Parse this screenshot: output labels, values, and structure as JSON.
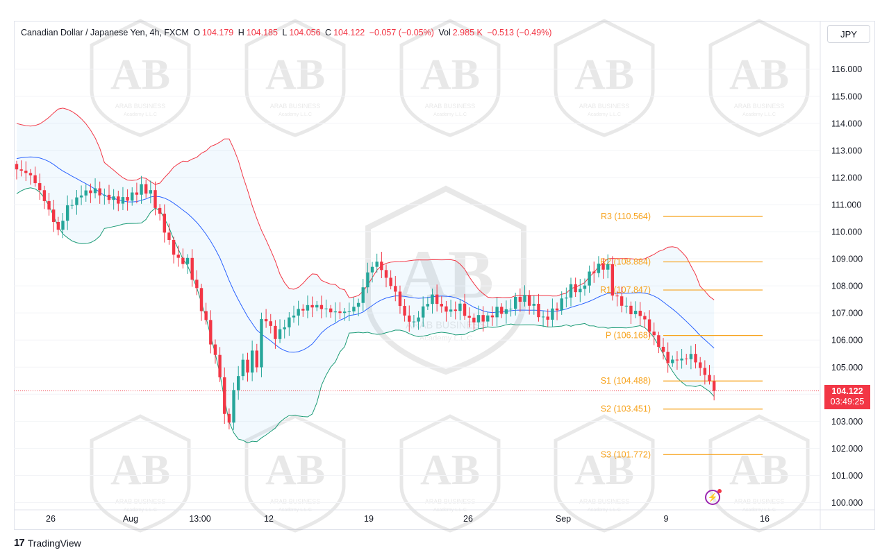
{
  "header": {
    "symbol": "Canadian Dollar / Japanese Yen, 4h, FXCM",
    "o_label": "O",
    "o_value": "104.179",
    "h_label": "H",
    "h_value": "104.185",
    "l_label": "L",
    "l_value": "104.056",
    "c_label": "C",
    "c_value": "104.122",
    "change": "−0.057 (−0.05%)",
    "vol_label": "Vol",
    "vol_value": "2.985 K",
    "vol_change": "−0.513 (−0.49%)",
    "currency": "JPY"
  },
  "price_tag": {
    "price": "104.122",
    "countdown": "03:49:25"
  },
  "footer": {
    "brand": "TradingView",
    "logo": "17"
  },
  "watermark": {
    "line1": "ARAB BUSINESS",
    "line2": "Academy L.L.C",
    "monogram": "AB"
  },
  "colors": {
    "up": "#26a69a",
    "down": "#f23645",
    "upper_band": "#f23645",
    "lower_band": "#1b9b76",
    "basis": "#2962ff",
    "pivot": "#f7a21b",
    "band_fill": "#2196f3"
  },
  "chart_data": {
    "type": "candlestick",
    "y_axis": {
      "ticks": [
        "100.000",
        "101.000",
        "102.000",
        "103.000",
        "104.000",
        "105.000",
        "106.000",
        "107.000",
        "108.000",
        "109.000",
        "110.000",
        "111.000",
        "112.000",
        "113.000",
        "114.000",
        "115.000",
        "116.000"
      ],
      "range": [
        99.6,
        116.8
      ]
    },
    "x_axis": {
      "ticks": [
        "26",
        "Aug",
        "13:00",
        "12",
        "19",
        "26",
        "Sep",
        "9",
        "16"
      ]
    },
    "pivot_levels": [
      {
        "name": "R3",
        "value": 110.564,
        "label": "R3 (110.564)"
      },
      {
        "name": "R2",
        "value": 108.884,
        "label": "R2 (108.884)"
      },
      {
        "name": "R1",
        "value": 107.847,
        "label": "R1 (107.847)"
      },
      {
        "name": "P",
        "value": 106.168,
        "label": "P (106.168)"
      },
      {
        "name": "S1",
        "value": 104.488,
        "label": "S1 (104.488)"
      },
      {
        "name": "S2",
        "value": 103.451,
        "label": "S2 (103.451)"
      },
      {
        "name": "S3",
        "value": 101.772,
        "label": "S3 (101.772)"
      }
    ],
    "last_price": 104.122,
    "close_path": [
      [
        0,
        112.3
      ],
      [
        3,
        111.8
      ],
      [
        6,
        111.0
      ],
      [
        9,
        110.2
      ],
      [
        11,
        111.2
      ],
      [
        14,
        111.5
      ],
      [
        17,
        111.3
      ],
      [
        19,
        111.0
      ],
      [
        22,
        111.1
      ],
      [
        25,
        111.6
      ],
      [
        27,
        111.9
      ],
      [
        29,
        111.5
      ],
      [
        31,
        110.4
      ],
      [
        33,
        109.3
      ],
      [
        35,
        108.7
      ],
      [
        37,
        108.9
      ],
      [
        39,
        108.0
      ],
      [
        41,
        106.9
      ],
      [
        43,
        105.5
      ],
      [
        44,
        104.8
      ],
      [
        45,
        103.1
      ],
      [
        46,
        102.9
      ],
      [
        47,
        103.8
      ],
      [
        48,
        104.5
      ],
      [
        49,
        104.9
      ],
      [
        50,
        104.7
      ],
      [
        51,
        105.4
      ],
      [
        52,
        105.1
      ],
      [
        53,
        106.8
      ],
      [
        54,
        107.0
      ],
      [
        56,
        106.4
      ],
      [
        58,
        106.7
      ],
      [
        60,
        106.9
      ],
      [
        62,
        106.9
      ],
      [
        64,
        107.0
      ],
      [
        66,
        107.1
      ],
      [
        68,
        107.2
      ],
      [
        70,
        107.3
      ],
      [
        72,
        107.3
      ],
      [
        74,
        107.4
      ],
      [
        76,
        108.3
      ],
      [
        78,
        108.6
      ],
      [
        80,
        108.1
      ],
      [
        82,
        107.8
      ],
      [
        84,
        107.1
      ],
      [
        86,
        106.9
      ],
      [
        88,
        107.3
      ],
      [
        90,
        107.5
      ],
      [
        92,
        106.9
      ],
      [
        94,
        106.8
      ],
      [
        96,
        107.2
      ],
      [
        98,
        106.9
      ],
      [
        100,
        107.1
      ],
      [
        102,
        107.0
      ],
      [
        104,
        107.1
      ],
      [
        106,
        106.8
      ],
      [
        108,
        107.2
      ],
      [
        110,
        107.4
      ],
      [
        112,
        107.3
      ],
      [
        114,
        107.0
      ],
      [
        116,
        107.3
      ],
      [
        118,
        107.5
      ],
      [
        120,
        107.8
      ],
      [
        122,
        107.5
      ],
      [
        124,
        108.2
      ],
      [
        126,
        108.7
      ],
      [
        128,
        108.9
      ],
      [
        129,
        108.0
      ],
      [
        131,
        107.6
      ],
      [
        133,
        107.1
      ],
      [
        135,
        106.8
      ],
      [
        137,
        106.1
      ],
      [
        139,
        105.6
      ],
      [
        141,
        105.2
      ],
      [
        143,
        105.5
      ],
      [
        145,
        105.6
      ],
      [
        146,
        105.7
      ],
      [
        148,
        105.0
      ],
      [
        150,
        104.3
      ],
      [
        151,
        104.1
      ]
    ]
  }
}
